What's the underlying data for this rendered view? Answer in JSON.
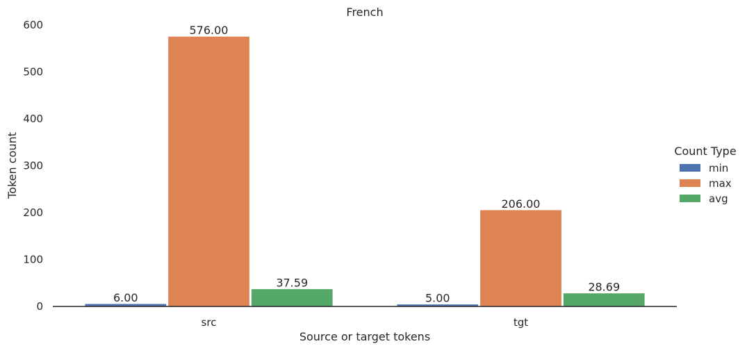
{
  "chart_data": {
    "type": "bar",
    "title": "French",
    "xlabel": "Source or target tokens",
    "ylabel": "Token count",
    "categories": [
      "src",
      "tgt"
    ],
    "series": [
      {
        "name": "min",
        "values": [
          6.0,
          5.0
        ],
        "labels": [
          "6.00",
          "5.00"
        ],
        "color": "#4c72b0"
      },
      {
        "name": "max",
        "values": [
          576.0,
          206.0
        ],
        "labels": [
          "576.00",
          "206.00"
        ],
        "color": "#dd8452"
      },
      {
        "name": "avg",
        "values": [
          37.59,
          28.69
        ],
        "labels": [
          "37.59",
          "28.69"
        ],
        "color": "#55a868"
      }
    ],
    "ylim": [
      0,
      600
    ],
    "yticks": [
      0,
      100,
      200,
      300,
      400,
      500,
      600
    ],
    "grid": false,
    "legend": {
      "title": "Count Type",
      "placement": "right"
    }
  }
}
